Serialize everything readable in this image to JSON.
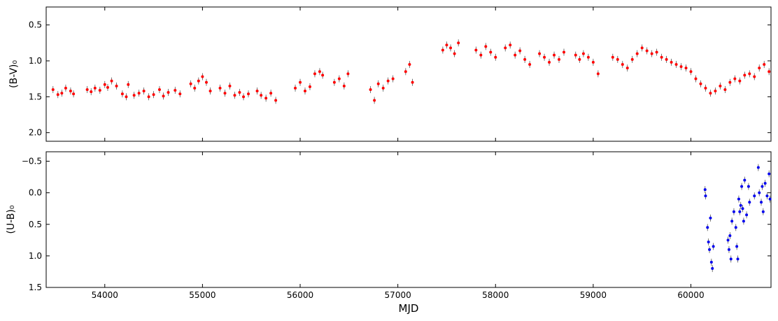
{
  "chart_data": [
    {
      "type": "scatter",
      "ylabel": "(B-V)₀",
      "xlim": [
        53400,
        60820
      ],
      "ylim": [
        2.12,
        0.25
      ],
      "y_inverted": true,
      "yticks": [
        "0.5",
        "1.0",
        "1.5",
        "2.0"
      ],
      "ytick_values": [
        0.5,
        1.0,
        1.5,
        2.0
      ],
      "marker_color": "#ff0000",
      "errorbar_color": "#555555",
      "error_bars": true,
      "points": [
        [
          53470,
          1.4
        ],
        [
          53520,
          1.47
        ],
        [
          53560,
          1.45
        ],
        [
          53600,
          1.38
        ],
        [
          53650,
          1.42
        ],
        [
          53680,
          1.46
        ],
        [
          53820,
          1.4
        ],
        [
          53860,
          1.43
        ],
        [
          53900,
          1.38
        ],
        [
          53950,
          1.41
        ],
        [
          54000,
          1.33
        ],
        [
          54030,
          1.37
        ],
        [
          54070,
          1.28
        ],
        [
          54120,
          1.35
        ],
        [
          54180,
          1.46
        ],
        [
          54220,
          1.5
        ],
        [
          54240,
          1.33
        ],
        [
          54300,
          1.48
        ],
        [
          54350,
          1.45
        ],
        [
          54400,
          1.42
        ],
        [
          54450,
          1.5
        ],
        [
          54500,
          1.47
        ],
        [
          54560,
          1.4
        ],
        [
          54600,
          1.49
        ],
        [
          54650,
          1.44
        ],
        [
          54720,
          1.41
        ],
        [
          54770,
          1.46
        ],
        [
          54880,
          1.32
        ],
        [
          54920,
          1.38
        ],
        [
          54960,
          1.28
        ],
        [
          55000,
          1.22
        ],
        [
          55040,
          1.3
        ],
        [
          55080,
          1.42
        ],
        [
          55180,
          1.38
        ],
        [
          55230,
          1.45
        ],
        [
          55280,
          1.35
        ],
        [
          55330,
          1.48
        ],
        [
          55380,
          1.44
        ],
        [
          55420,
          1.5
        ],
        [
          55470,
          1.46
        ],
        [
          55560,
          1.42
        ],
        [
          55600,
          1.48
        ],
        [
          55650,
          1.52
        ],
        [
          55700,
          1.45
        ],
        [
          55750,
          1.55
        ],
        [
          55950,
          1.38
        ],
        [
          56000,
          1.3
        ],
        [
          56050,
          1.42
        ],
        [
          56100,
          1.36
        ],
        [
          56150,
          1.18
        ],
        [
          56200,
          1.15
        ],
        [
          56230,
          1.2
        ],
        [
          56350,
          1.3
        ],
        [
          56400,
          1.25
        ],
        [
          56450,
          1.35
        ],
        [
          56490,
          1.18
        ],
        [
          56720,
          1.4
        ],
        [
          56760,
          1.55
        ],
        [
          56800,
          1.32
        ],
        [
          56850,
          1.38
        ],
        [
          56900,
          1.28
        ],
        [
          56950,
          1.25
        ],
        [
          57080,
          1.15
        ],
        [
          57120,
          1.05
        ],
        [
          57150,
          1.3
        ],
        [
          57460,
          0.85
        ],
        [
          57500,
          0.78
        ],
        [
          57540,
          0.82
        ],
        [
          57580,
          0.9
        ],
        [
          57620,
          0.75
        ],
        [
          57800,
          0.85
        ],
        [
          57850,
          0.92
        ],
        [
          57900,
          0.8
        ],
        [
          57950,
          0.88
        ],
        [
          58000,
          0.95
        ],
        [
          58100,
          0.82
        ],
        [
          58150,
          0.78
        ],
        [
          58200,
          0.92
        ],
        [
          58250,
          0.86
        ],
        [
          58300,
          0.98
        ],
        [
          58350,
          1.05
        ],
        [
          58450,
          0.9
        ],
        [
          58500,
          0.95
        ],
        [
          58550,
          1.02
        ],
        [
          58600,
          0.92
        ],
        [
          58650,
          0.98
        ],
        [
          58700,
          0.88
        ],
        [
          58820,
          0.92
        ],
        [
          58860,
          0.98
        ],
        [
          58900,
          0.9
        ],
        [
          58950,
          0.95
        ],
        [
          59000,
          1.02
        ],
        [
          59050,
          1.18
        ],
        [
          59200,
          0.95
        ],
        [
          59250,
          0.98
        ],
        [
          59300,
          1.05
        ],
        [
          59350,
          1.1
        ],
        [
          59400,
          0.98
        ],
        [
          59450,
          0.9
        ],
        [
          59500,
          0.82
        ],
        [
          59550,
          0.86
        ],
        [
          59600,
          0.9
        ],
        [
          59650,
          0.88
        ],
        [
          59700,
          0.95
        ],
        [
          59750,
          0.98
        ],
        [
          59800,
          1.02
        ],
        [
          59850,
          1.05
        ],
        [
          59900,
          1.08
        ],
        [
          59950,
          1.1
        ],
        [
          60000,
          1.15
        ],
        [
          60050,
          1.25
        ],
        [
          60100,
          1.32
        ],
        [
          60150,
          1.38
        ],
        [
          60200,
          1.45
        ],
        [
          60250,
          1.42
        ],
        [
          60300,
          1.35
        ],
        [
          60350,
          1.4
        ],
        [
          60400,
          1.3
        ],
        [
          60450,
          1.25
        ],
        [
          60500,
          1.28
        ],
        [
          60550,
          1.2
        ],
        [
          60600,
          1.18
        ],
        [
          60650,
          1.22
        ],
        [
          60700,
          1.1
        ],
        [
          60750,
          1.05
        ],
        [
          60800,
          1.15
        ]
      ]
    },
    {
      "type": "scatter",
      "ylabel": "(U-B)₀",
      "xlabel": "MJD",
      "xlim": [
        53400,
        60820
      ],
      "ylim": [
        1.5,
        -0.65
      ],
      "y_inverted": true,
      "yticks": [
        "−0.5",
        "0.0",
        "0.5",
        "1.0",
        "1.5"
      ],
      "ytick_values": [
        -0.5,
        0.0,
        0.5,
        1.0,
        1.5
      ],
      "xticks": [
        "54000",
        "55000",
        "56000",
        "57000",
        "58000",
        "59000",
        "60000"
      ],
      "xtick_values": [
        54000,
        55000,
        56000,
        57000,
        58000,
        59000,
        60000
      ],
      "marker_color": "#0000ee",
      "errorbar_color": "#555555",
      "error_bars": true,
      "points": [
        [
          60145,
          -0.05
        ],
        [
          60150,
          0.05
        ],
        [
          60170,
          0.55
        ],
        [
          60180,
          0.78
        ],
        [
          60190,
          0.9
        ],
        [
          60200,
          0.4
        ],
        [
          60210,
          1.1
        ],
        [
          60220,
          1.2
        ],
        [
          60230,
          0.85
        ],
        [
          60380,
          0.75
        ],
        [
          60390,
          0.9
        ],
        [
          60400,
          0.68
        ],
        [
          60410,
          1.05
        ],
        [
          60420,
          0.45
        ],
        [
          60440,
          0.3
        ],
        [
          60460,
          0.55
        ],
        [
          60470,
          0.85
        ],
        [
          60480,
          1.05
        ],
        [
          60490,
          0.1
        ],
        [
          60500,
          0.3
        ],
        [
          60510,
          0.2
        ],
        [
          60520,
          -0.1
        ],
        [
          60530,
          0.25
        ],
        [
          60540,
          0.45
        ],
        [
          60550,
          -0.2
        ],
        [
          60570,
          0.35
        ],
        [
          60590,
          -0.1
        ],
        [
          60600,
          0.15
        ],
        [
          60650,
          0.05
        ],
        [
          60690,
          -0.4
        ],
        [
          60700,
          0.0
        ],
        [
          60720,
          0.15
        ],
        [
          60730,
          -0.1
        ],
        [
          60740,
          0.3
        ],
        [
          60760,
          -0.15
        ],
        [
          60780,
          0.05
        ],
        [
          60800,
          -0.3
        ],
        [
          60810,
          0.1
        ]
      ]
    }
  ]
}
